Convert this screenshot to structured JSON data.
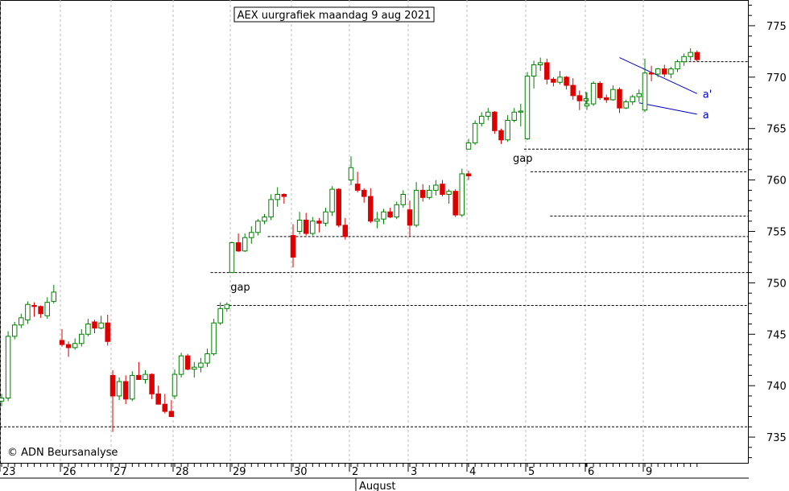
{
  "chart_data": {
    "type": "candlestick",
    "title": "AEX uurgrafiek maandag 9 aug 2021",
    "copyright": "© ADN Beursanalyse",
    "y_ticks": [
      735,
      740,
      745,
      750,
      755,
      760,
      765,
      770,
      775
    ],
    "ylim": [
      732.5,
      777.5
    ],
    "x_day_labels": [
      "23",
      "26",
      "27",
      "28",
      "29",
      "30",
      "2",
      "3",
      "4",
      "5",
      "6",
      "9"
    ],
    "x_month_label": "August",
    "colors": {
      "up": "#008000",
      "down": "#dd0000",
      "trend": "#0000cc"
    },
    "gap_levels": [
      736.0,
      747.8,
      751.0,
      754.5,
      756.5,
      760.8,
      763.0,
      771.5
    ],
    "annotations": [
      {
        "text": "gap",
        "price": 749.5,
        "candle": 38
      },
      {
        "text": "gap",
        "price": 762.0,
        "candle": 82
      }
    ],
    "trendlines": [
      {
        "label": "a'",
        "from": {
          "candle": 97,
          "price": 771.9
        },
        "to": {
          "candle": 121,
          "price": 768.4
        }
      },
      {
        "label": "a",
        "from": {
          "candle": 100,
          "price": 767.5
        },
        "to": {
          "candle": 121,
          "price": 766.4
        }
      }
    ],
    "candles": [
      [
        738.5,
        739.2,
        738.0,
        738.8
      ],
      [
        738.8,
        745.3,
        738.5,
        744.8
      ],
      [
        744.8,
        746.2,
        744.5,
        745.9
      ],
      [
        745.9,
        747.0,
        745.6,
        746.6
      ],
      [
        746.4,
        748.2,
        746.0,
        747.9
      ],
      [
        747.8,
        748.1,
        746.7,
        747.7
      ],
      [
        747.7,
        747.8,
        746.6,
        747.0
      ],
      [
        746.8,
        748.6,
        746.5,
        748.1
      ],
      [
        748.2,
        749.8,
        748.0,
        749.1
      ],
      [
        744.4,
        745.5,
        743.8,
        744.0
      ],
      [
        744.0,
        744.3,
        742.8,
        743.7
      ],
      [
        743.7,
        744.6,
        743.5,
        744.1
      ],
      [
        744.1,
        745.5,
        743.8,
        745.0
      ],
      [
        745.0,
        746.5,
        744.8,
        746.0
      ],
      [
        746.2,
        746.4,
        745.1,
        745.6
      ],
      [
        745.6,
        746.8,
        745.5,
        746.1
      ],
      [
        746.1,
        746.9,
        743.9,
        744.3
      ],
      [
        741.0,
        741.5,
        735.5,
        739.0
      ],
      [
        739.0,
        740.8,
        738.6,
        740.4
      ],
      [
        740.4,
        741.0,
        738.2,
        738.7
      ],
      [
        738.7,
        741.4,
        738.5,
        741.0
      ],
      [
        741.0,
        742.3,
        740.6,
        740.6
      ],
      [
        740.6,
        741.5,
        740.2,
        741.1
      ],
      [
        741.1,
        741.2,
        738.7,
        739.2
      ],
      [
        739.2,
        740.0,
        738.2,
        738.2
      ],
      [
        738.2,
        739.2,
        737.3,
        737.5
      ],
      [
        737.5,
        738.6,
        737.0,
        737.0
      ],
      [
        739.0,
        741.6,
        738.7,
        741.1
      ],
      [
        741.1,
        743.2,
        740.8,
        742.9
      ],
      [
        742.9,
        743.1,
        741.5,
        741.6
      ],
      [
        741.6,
        742.3,
        740.8,
        741.8
      ],
      [
        741.8,
        742.7,
        741.3,
        742.2
      ],
      [
        742.2,
        743.6,
        741.8,
        743.1
      ],
      [
        743.1,
        746.5,
        742.9,
        746.1
      ],
      [
        746.1,
        748.1,
        745.9,
        747.5
      ],
      [
        747.5,
        748.1,
        747.2,
        747.9
      ],
      [
        751.0,
        754.0,
        751.0,
        753.9
      ],
      [
        753.9,
        754.8,
        753.0,
        753.1
      ],
      [
        753.1,
        754.8,
        753.0,
        754.4
      ],
      [
        754.4,
        755.5,
        753.8,
        754.9
      ],
      [
        754.9,
        756.2,
        754.6,
        756.0
      ],
      [
        756.0,
        756.7,
        755.7,
        756.4
      ],
      [
        756.4,
        758.6,
        756.1,
        758.1
      ],
      [
        758.1,
        759.3,
        757.4,
        758.6
      ],
      [
        758.6,
        758.7,
        757.7,
        758.4
      ],
      [
        754.6,
        755.7,
        751.5,
        752.5
      ],
      [
        755.0,
        756.9,
        754.7,
        756.1
      ],
      [
        756.1,
        756.8,
        754.6,
        754.8
      ],
      [
        754.8,
        756.4,
        754.6,
        756.0
      ],
      [
        756.0,
        756.3,
        754.9,
        755.8
      ],
      [
        755.8,
        757.3,
        755.5,
        756.9
      ],
      [
        756.9,
        759.4,
        756.5,
        759.1
      ],
      [
        759.1,
        759.2,
        755.4,
        755.6
      ],
      [
        755.6,
        756.3,
        754.2,
        754.5
      ],
      [
        760.0,
        762.3,
        759.5,
        761.2
      ],
      [
        759.6,
        760.8,
        758.8,
        759.0
      ],
      [
        759.0,
        759.2,
        757.8,
        758.4
      ],
      [
        758.4,
        759.2,
        755.8,
        756.0
      ],
      [
        756.0,
        756.9,
        755.3,
        756.2
      ],
      [
        756.2,
        757.2,
        755.7,
        756.9
      ],
      [
        756.9,
        757.3,
        756.3,
        756.4
      ],
      [
        756.4,
        757.9,
        756.2,
        757.6
      ],
      [
        757.6,
        759.0,
        757.3,
        758.6
      ],
      [
        757.1,
        758.0,
        754.5,
        755.6
      ],
      [
        755.6,
        759.8,
        755.4,
        759.0
      ],
      [
        759.0,
        759.6,
        757.9,
        758.3
      ],
      [
        758.3,
        759.5,
        758.1,
        759.0
      ],
      [
        759.0,
        760.0,
        758.5,
        759.5
      ],
      [
        759.6,
        760.0,
        758.4,
        758.6
      ],
      [
        758.6,
        759.1,
        757.7,
        758.9
      ],
      [
        758.9,
        759.1,
        756.4,
        756.6
      ],
      [
        756.6,
        761.1,
        756.4,
        760.6
      ],
      [
        760.6,
        760.9,
        760.0,
        760.4
      ],
      [
        763.0,
        764.0,
        763.0,
        763.6
      ],
      [
        763.6,
        765.8,
        763.4,
        765.5
      ],
      [
        765.5,
        766.6,
        765.2,
        766.2
      ],
      [
        766.2,
        767.0,
        765.8,
        766.6
      ],
      [
        766.6,
        766.7,
        764.5,
        764.8
      ],
      [
        764.8,
        765.0,
        763.5,
        763.9
      ],
      [
        763.9,
        766.3,
        763.7,
        765.8
      ],
      [
        765.8,
        767.0,
        765.6,
        766.6
      ],
      [
        766.6,
        767.4,
        765.2,
        766.7
      ],
      [
        764.0,
        770.5,
        763.9,
        770.1
      ],
      [
        770.1,
        771.6,
        768.9,
        771.2
      ],
      [
        771.2,
        771.9,
        770.6,
        771.4
      ],
      [
        771.4,
        771.8,
        769.3,
        769.8
      ],
      [
        769.8,
        770.0,
        769.1,
        769.5
      ],
      [
        769.5,
        770.6,
        769.3,
        770.0
      ],
      [
        770.0,
        770.1,
        768.8,
        769.2
      ],
      [
        769.2,
        769.9,
        767.8,
        768.2
      ],
      [
        768.2,
        768.7,
        766.8,
        767.7
      ],
      [
        767.7,
        768.6,
        767.3,
        767.9
      ],
      [
        767.2,
        768.5,
        766.8,
        767.4
      ],
      [
        767.4,
        769.6,
        767.2,
        769.4
      ],
      [
        769.4,
        769.6,
        767.8,
        768.0
      ],
      [
        768.0,
        768.3,
        767.5,
        767.8
      ],
      [
        767.8,
        769.2,
        767.7,
        768.8
      ],
      [
        768.8,
        769.0,
        766.5,
        767.0
      ],
      [
        767.0,
        767.8,
        766.9,
        767.6
      ],
      [
        767.6,
        768.3,
        767.3,
        768.1
      ],
      [
        768.1,
        768.8,
        767.6,
        768.4
      ],
      [
        766.8,
        771.8,
        766.6,
        770.4
      ],
      [
        770.4,
        771.1,
        769.6,
        770.3
      ],
      [
        770.3,
        770.9,
        770.0,
        770.8
      ],
      [
        770.8,
        771.2,
        770.0,
        770.3
      ],
      [
        770.3,
        771.0,
        769.9,
        770.8
      ],
      [
        770.8,
        771.7,
        770.5,
        771.5
      ],
      [
        771.5,
        772.3,
        771.1,
        772.0
      ],
      [
        772.0,
        772.8,
        771.6,
        772.4
      ],
      [
        772.4,
        772.6,
        771.5,
        771.7
      ]
    ]
  }
}
